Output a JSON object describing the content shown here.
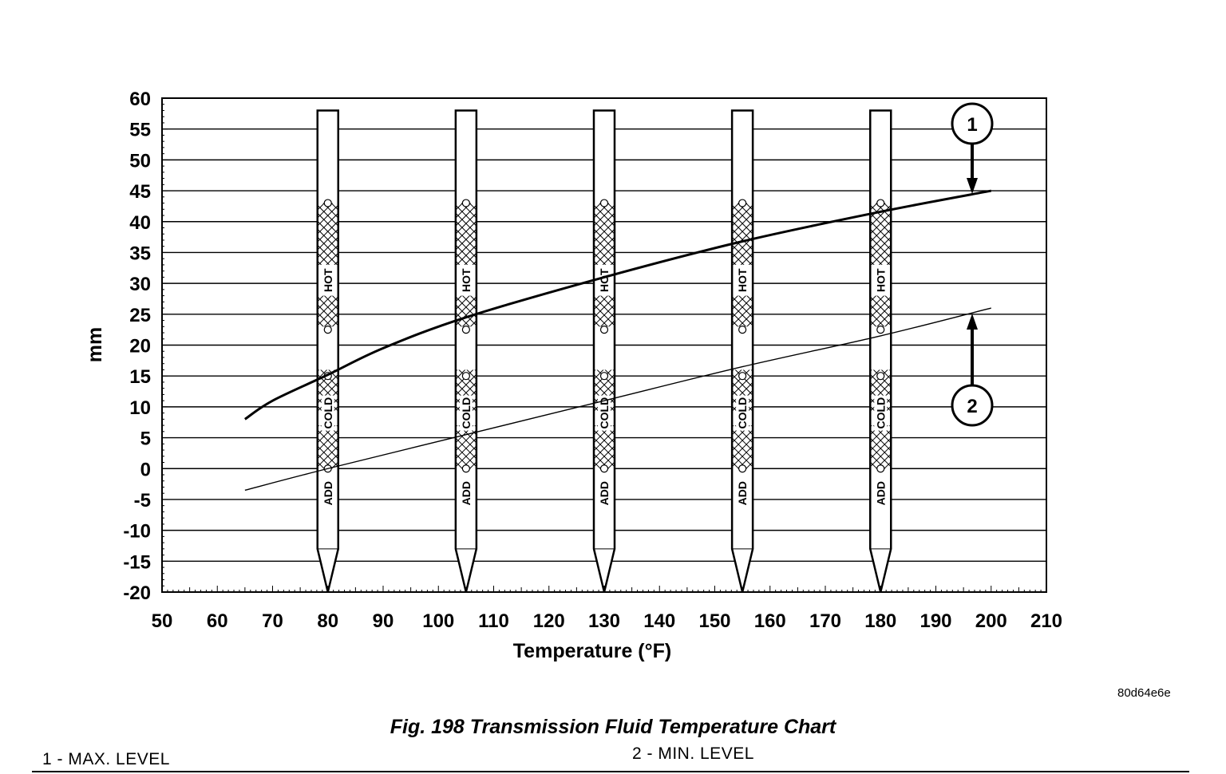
{
  "chart_data": {
    "type": "line",
    "title": "Fig. 198 Transmission Fluid Temperature Chart",
    "xlabel": "Temperature (°F)",
    "ylabel": "mm",
    "xlim": [
      50,
      210
    ],
    "ylim": [
      -20,
      60
    ],
    "x_ticks": [
      "50",
      "60",
      "70",
      "80",
      "90",
      "100",
      "110",
      "120",
      "130",
      "140",
      "150",
      "160",
      "170",
      "180",
      "190",
      "200",
      "210"
    ],
    "y_ticks": [
      "60",
      "55",
      "50",
      "45",
      "40",
      "35",
      "30",
      "25",
      "20",
      "15",
      "10",
      "5",
      "0",
      "-5",
      "-10",
      "-15",
      "-20"
    ],
    "grid": "horizontal",
    "series": [
      {
        "name": "1 - MAX. LEVEL",
        "callout": "1",
        "x": [
          65,
          70,
          80,
          90,
          105,
          130,
          155,
          180,
          200
        ],
        "y": [
          8,
          11,
          15.2,
          19.5,
          24.5,
          31,
          36.8,
          41.6,
          45
        ]
      },
      {
        "name": "2 - MIN. LEVEL",
        "callout": "2",
        "x": [
          65,
          80,
          105,
          130,
          155,
          180,
          200
        ],
        "y": [
          -3.5,
          0,
          5.5,
          11,
          16.5,
          21.5,
          26
        ]
      }
    ],
    "dipsticks": {
      "temperatures": [
        80,
        105,
        130,
        155,
        180
      ],
      "labels": {
        "hot": "HOT",
        "cold": "COLD",
        "add": "ADD"
      }
    }
  },
  "figure": {
    "image_code": "80d64e6e",
    "caption": "Fig. 198 Transmission Fluid Temperature Chart",
    "legend_1": "1 - MAX. LEVEL",
    "legend_2": "2 - MIN. LEVEL"
  }
}
